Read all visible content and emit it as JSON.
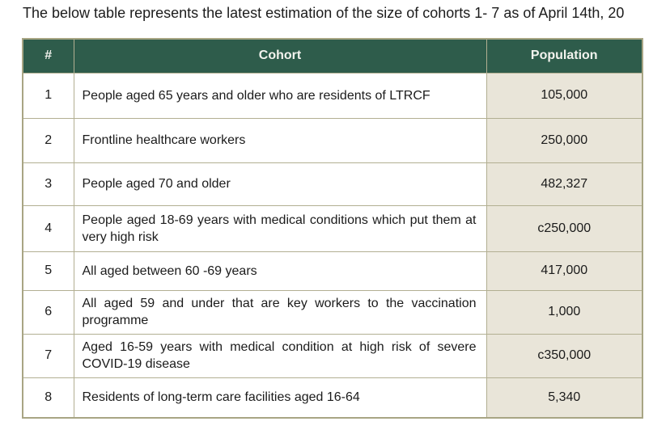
{
  "title": "The below table represents the latest estimation of the size of cohorts 1- 7 as of April 14th, 20",
  "table": {
    "columns": [
      "#",
      "Cohort",
      "Population"
    ],
    "rows": [
      {
        "num": "1",
        "cohort": "People aged 65 years and older who are residents of LTRCF",
        "population": "105,000"
      },
      {
        "num": "2",
        "cohort": "Frontline healthcare workers",
        "population": "250,000"
      },
      {
        "num": "3",
        "cohort": "People aged 70 and older",
        "population": "482,327"
      },
      {
        "num": "4",
        "cohort": "People aged 18-69 years with medical conditions which put them at very high risk",
        "population": "c250,000"
      },
      {
        "num": "5",
        "cohort": "All aged between 60 -69 years",
        "population": "417,000"
      },
      {
        "num": "6",
        "cohort": "All aged 59 and under that are key workers to the vaccination programme",
        "population": "1,000"
      },
      {
        "num": "7",
        "cohort": "Aged 16-59 years with medical condition at high risk of severe COVID-19 disease",
        "population": "c350,000"
      },
      {
        "num": "8",
        "cohort": "Residents of long-term care facilities aged 16-64",
        "population": "5,340"
      }
    ]
  },
  "colors": {
    "header_bg": "#2E5C4B",
    "header_text": "#F3F3EE",
    "border": "#B2AF92",
    "outer_border": "#A8A584",
    "population_bg": "#E9E5D9",
    "row_bg": "#FFFFFF",
    "text": "#1B1B1B"
  }
}
